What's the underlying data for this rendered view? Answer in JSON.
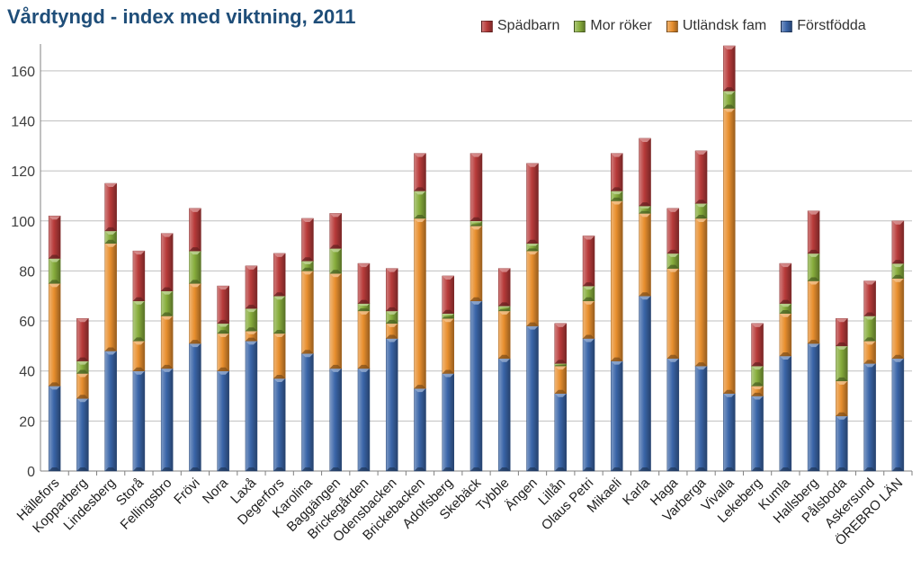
{
  "chart_data": {
    "type": "bar",
    "stacked": true,
    "title": "Vårdtyngd - index med viktning, 2011",
    "xlabel": "",
    "ylabel": "",
    "ylim": [
      0,
      170
    ],
    "yticks": [
      0,
      20,
      40,
      60,
      80,
      100,
      120,
      140,
      160
    ],
    "grid": true,
    "legend_position": "top-right",
    "categories": [
      "Hällefors",
      "Kopparberg",
      "Lindesberg",
      "Storå",
      "Fellingsbro",
      "Frövi",
      "Nora",
      "Laxå",
      "Degerfors",
      "Karolina",
      "Baggängen",
      "Brickegården",
      "Odensbacken",
      "Brickebacken",
      "Adolfsberg",
      "Skebäck",
      "Tybble",
      "Ängen",
      "Lillån",
      "Olaus Petri",
      "Mikaeli",
      "Karla",
      "Haga",
      "Varberga",
      "Vivalla",
      "Lekeberg",
      "Kumla",
      "Hallsberg",
      "Pålsboda",
      "Askersund",
      "ÖREBRO LÄN"
    ],
    "series": [
      {
        "name": "Förstfödda",
        "color": "#3a65a8",
        "values": [
          34,
          29,
          48,
          40,
          41,
          51,
          40,
          52,
          37,
          47,
          41,
          41,
          53,
          33,
          39,
          68,
          45,
          58,
          31,
          53,
          44,
          70,
          45,
          42,
          31,
          30,
          46,
          51,
          22,
          43,
          45
        ]
      },
      {
        "name": "Utländsk fam",
        "color": "#e88f2e",
        "values": [
          41,
          10,
          43,
          12,
          21,
          24,
          15,
          4,
          18,
          33,
          38,
          23,
          6,
          68,
          22,
          30,
          19,
          30,
          11,
          15,
          64,
          33,
          36,
          59,
          114,
          4,
          17,
          25,
          14,
          9,
          32
        ]
      },
      {
        "name": "Mor röker",
        "color": "#87ad3c",
        "values": [
          10,
          5,
          5,
          16,
          10,
          13,
          4,
          9,
          15,
          4,
          10,
          3,
          5,
          11,
          2,
          2,
          2,
          3,
          1,
          6,
          4,
          3,
          6,
          6,
          7,
          8,
          4,
          11,
          14,
          10,
          6
        ]
      },
      {
        "name": "Spädbarn",
        "color": "#b83b3a",
        "values": [
          17,
          17,
          19,
          20,
          23,
          17,
          15,
          17,
          17,
          17,
          14,
          16,
          17,
          15,
          15,
          27,
          15,
          32,
          16,
          20,
          15,
          27,
          18,
          21,
          18,
          17,
          16,
          17,
          11,
          14,
          17
        ]
      }
    ]
  }
}
